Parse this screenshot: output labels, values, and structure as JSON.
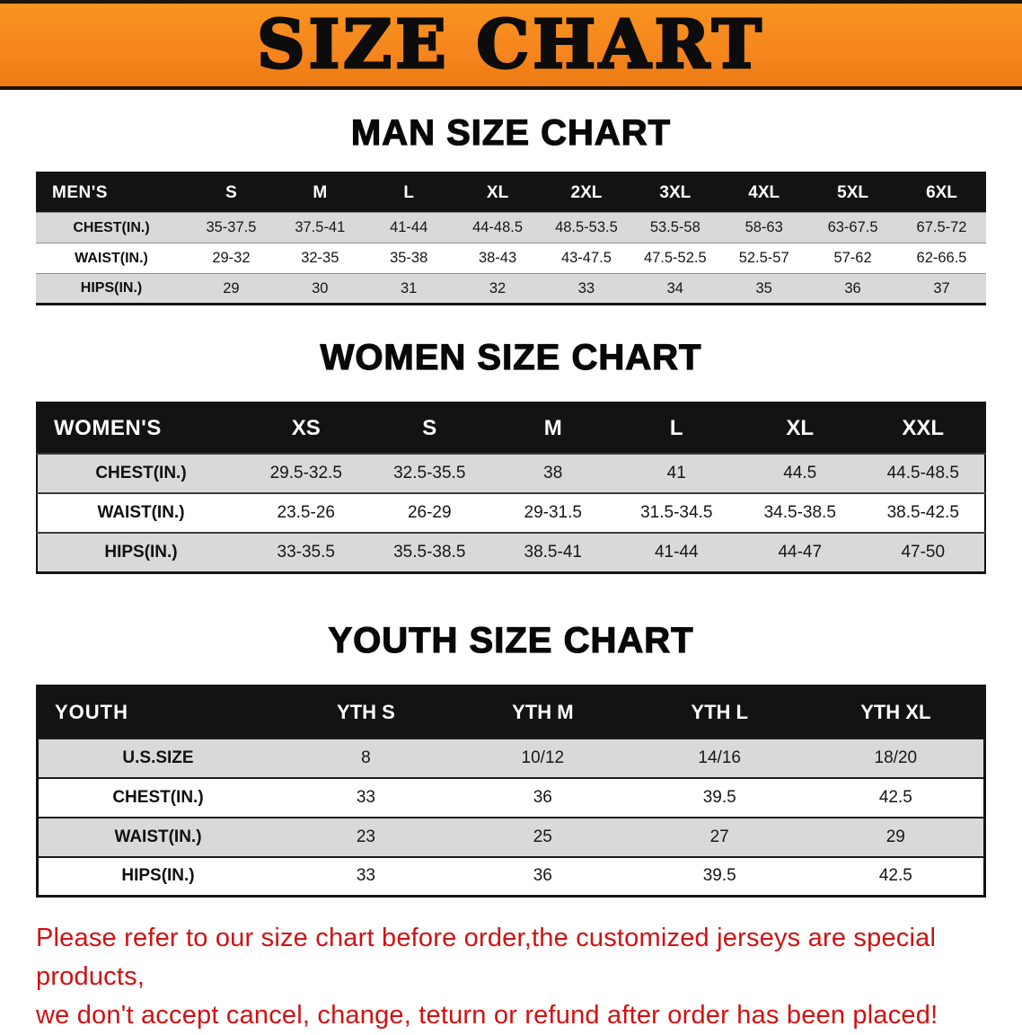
{
  "banner": {
    "title": "SIZE CHART"
  },
  "sections": [
    {
      "id": "men",
      "heading": "MAN SIZE CHART",
      "table": {
        "header": [
          "MEN'S",
          "S",
          "M",
          "L",
          "XL",
          "2XL",
          "3XL",
          "4XL",
          "5XL",
          "6XL"
        ],
        "rows": [
          {
            "label": "CHEST(IN.)",
            "values": [
              "35-37.5",
              "37.5-41",
              "41-44",
              "44-48.5",
              "48.5-53.5",
              "53.5-58",
              "58-63",
              "63-67.5",
              "67.5-72"
            ]
          },
          {
            "label": "WAIST(IN.)",
            "values": [
              "29-32",
              "32-35",
              "35-38",
              "38-43",
              "43-47.5",
              "47.5-52.5",
              "52.5-57",
              "57-62",
              "62-66.5"
            ]
          },
          {
            "label": "HIPS(IN.)",
            "values": [
              "29",
              "30",
              "31",
              "32",
              "33",
              "34",
              "35",
              "36",
              "37"
            ]
          }
        ]
      }
    },
    {
      "id": "women",
      "heading": "WOMEN SIZE CHART",
      "table": {
        "header": [
          "WOMEN'S",
          "XS",
          "S",
          "M",
          "L",
          "XL",
          "XXL"
        ],
        "rows": [
          {
            "label": "CHEST(IN.)",
            "values": [
              "29.5-32.5",
              "32.5-35.5",
              "38",
              "41",
              "44.5",
              "44.5-48.5"
            ]
          },
          {
            "label": "WAIST(IN.)",
            "values": [
              "23.5-26",
              "26-29",
              "29-31.5",
              "31.5-34.5",
              "34.5-38.5",
              "38.5-42.5"
            ]
          },
          {
            "label": "HIPS(IN.)",
            "values": [
              "33-35.5",
              "35.5-38.5",
              "38.5-41",
              "41-44",
              "44-47",
              "47-50"
            ]
          }
        ]
      }
    },
    {
      "id": "youth",
      "heading": "YOUTH SIZE CHART",
      "table": {
        "header": [
          "YOUTH",
          "YTH S",
          "YTH M",
          "YTH L",
          "YTH XL"
        ],
        "rows": [
          {
            "label": "U.S.SIZE",
            "values": [
              "8",
              "10/12",
              "14/16",
              "18/20"
            ]
          },
          {
            "label": "CHEST(IN.)",
            "values": [
              "33",
              "36",
              "39.5",
              "42.5"
            ]
          },
          {
            "label": "WAIST(IN.)",
            "values": [
              "23",
              "25",
              "27",
              "29"
            ]
          },
          {
            "label": "HIPS(IN.)",
            "values": [
              "33",
              "36",
              "39.5",
              "42.5"
            ]
          }
        ]
      }
    }
  ],
  "disclaimer": {
    "line1": "Please refer to our size chart before order,the customized jerseys are special products,",
    "line2": "we don't accept cancel, change, teturn or refund after order has been placed!"
  },
  "colors": {
    "banner_orange": "#f6861d",
    "table_header_black": "#131313",
    "shaded_row_gray": "#d9d9d9",
    "disclaimer_red": "#d01212"
  }
}
